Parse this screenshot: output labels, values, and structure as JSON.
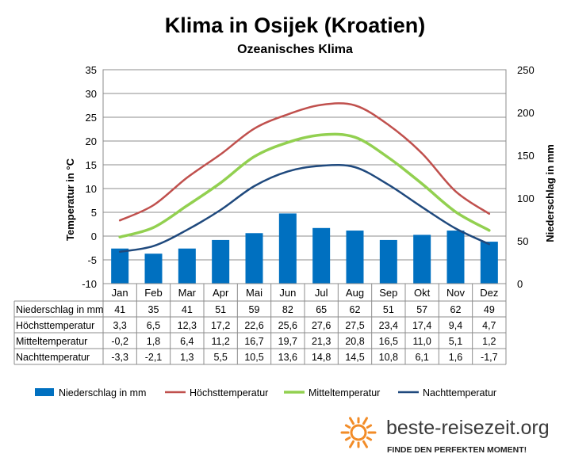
{
  "title": "Klima in Osijek (Kroatien)",
  "subtitle": "Ozeanisches  Klima",
  "brand": {
    "name": "beste-reisezeit.org",
    "slogan": "FINDE DEN PERFEKTEN MOMENT!"
  },
  "colors": {
    "bars": "#0070C0",
    "max": "#C0504D",
    "mean": "#92D050",
    "min": "#1F497D",
    "sun": "#F28C28"
  },
  "chart_data": {
    "type": "bar+line",
    "categories": [
      "Jan",
      "Feb",
      "Mar",
      "Apr",
      "Mai",
      "Jun",
      "Jul",
      "Aug",
      "Sep",
      "Okt",
      "Nov",
      "Dez"
    ],
    "y_left": {
      "label": "Temperatur in °C",
      "range": [
        -10,
        35
      ],
      "ticks": [
        "35",
        "30",
        "25",
        "20",
        "15",
        "10",
        "5",
        "0",
        "-5",
        "-10"
      ]
    },
    "y_right": {
      "label": "Niederschlag in mm",
      "range": [
        0,
        250
      ],
      "ticks": [
        "250",
        "200",
        "150",
        "100",
        "50",
        "0"
      ]
    },
    "series": [
      {
        "key": "precip",
        "name": "Niederschlag in mm",
        "type": "bar",
        "axis": "right",
        "values": [
          41,
          35,
          41,
          51,
          59,
          82,
          65,
          62,
          51,
          57,
          62,
          49
        ],
        "labels": [
          "41",
          "35",
          "41",
          "51",
          "59",
          "82",
          "65",
          "62",
          "51",
          "57",
          "62",
          "49"
        ]
      },
      {
        "key": "max",
        "name": "Höchsttemperatur",
        "type": "line",
        "axis": "left",
        "values": [
          3.3,
          6.5,
          12.3,
          17.2,
          22.6,
          25.6,
          27.6,
          27.5,
          23.4,
          17.4,
          9.4,
          4.7
        ],
        "labels": [
          "3,3",
          "6,5",
          "12,3",
          "17,2",
          "22,6",
          "25,6",
          "27,6",
          "27,5",
          "23,4",
          "17,4",
          "9,4",
          "4,7"
        ]
      },
      {
        "key": "mean",
        "name": "Mitteltemperatur",
        "type": "line",
        "axis": "left",
        "values": [
          -0.2,
          1.8,
          6.4,
          11.2,
          16.7,
          19.7,
          21.3,
          20.8,
          16.5,
          11.0,
          5.1,
          1.2
        ],
        "labels": [
          "-0,2",
          "1,8",
          "6,4",
          "11,2",
          "16,7",
          "19,7",
          "21,3",
          "20,8",
          "16,5",
          "11,0",
          "5,1",
          "1,2"
        ]
      },
      {
        "key": "min",
        "name": "Nachttemperatur",
        "type": "line",
        "axis": "left",
        "values": [
          -3.3,
          -2.1,
          1.3,
          5.5,
          10.5,
          13.6,
          14.8,
          14.5,
          10.8,
          6.1,
          1.6,
          -1.7
        ],
        "labels": [
          "-3,3",
          "-2,1",
          "1,3",
          "5,5",
          "10,5",
          "13,6",
          "14,8",
          "14,5",
          "10,8",
          "6,1",
          "1,6",
          "-1,7"
        ]
      }
    ],
    "table_rows": [
      "precip",
      "max",
      "mean",
      "min"
    ],
    "grid": "horizontal",
    "legend_position": "bottom"
  }
}
